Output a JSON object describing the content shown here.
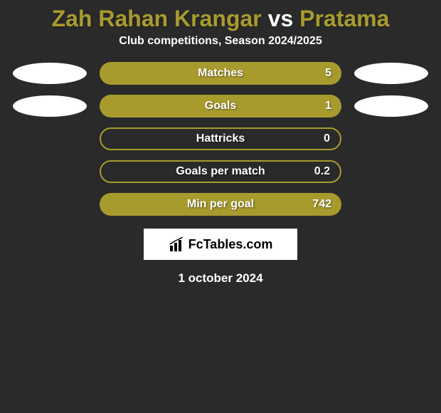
{
  "title": {
    "player1": "Zah Rahan Krangar",
    "vs": "vs",
    "player2": "Pratama",
    "player1_color": "#a89b2e",
    "vs_color": "#ffffff",
    "player2_color": "#a89b2e"
  },
  "subtitle": "Club competitions, Season 2024/2025",
  "stats": [
    {
      "label": "Matches",
      "value": "5",
      "filled": true,
      "show_left_ellipse": true,
      "show_right_ellipse": true
    },
    {
      "label": "Goals",
      "value": "1",
      "filled": true,
      "show_left_ellipse": true,
      "show_right_ellipse": true
    },
    {
      "label": "Hattricks",
      "value": "0",
      "filled": false,
      "show_left_ellipse": false,
      "show_right_ellipse": false
    },
    {
      "label": "Goals per match",
      "value": "0.2",
      "filled": false,
      "show_left_ellipse": false,
      "show_right_ellipse": false
    },
    {
      "label": "Min per goal",
      "value": "742",
      "filled": true,
      "show_left_ellipse": false,
      "show_right_ellipse": false
    }
  ],
  "logo": {
    "text": "FcTables.com"
  },
  "date": "1 october 2024",
  "colors": {
    "background": "#2a2a2a",
    "accent": "#a89b2e",
    "text": "#ffffff",
    "ellipse": "#ffffff"
  }
}
